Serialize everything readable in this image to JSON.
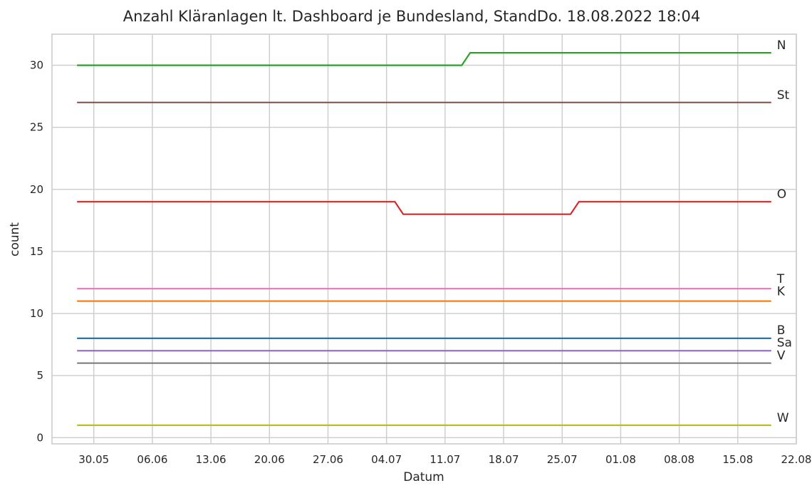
{
  "chart_data": {
    "type": "line",
    "title": "Anzahl Kläranlagen lt. Dashboard je Bundesland, StandDo. 18.08.2022 18:04",
    "xlabel": "Datum",
    "ylabel": "count",
    "x_ticks": [
      "30.05",
      "06.06",
      "13.06",
      "20.06",
      "27.06",
      "04.07",
      "11.07",
      "18.07",
      "25.07",
      "01.08",
      "08.08",
      "15.08",
      "22.08"
    ],
    "y_ticks": [
      0,
      5,
      10,
      15,
      20,
      25,
      30
    ],
    "xlim": [
      "2022-05-25",
      "2022-08-22"
    ],
    "ylim": [
      -0.5,
      32.5
    ],
    "grid": true,
    "legend": "none",
    "series": [
      {
        "name": "N",
        "color": "#2ca02c",
        "points": [
          [
            "2022-05-28",
            30
          ],
          [
            "2022-07-13",
            30
          ],
          [
            "2022-07-14",
            31
          ],
          [
            "2022-08-19",
            31
          ]
        ]
      },
      {
        "name": "St",
        "color": "#8c564b",
        "points": [
          [
            "2022-05-28",
            27
          ],
          [
            "2022-08-19",
            27
          ]
        ]
      },
      {
        "name": "O",
        "color": "#d62728",
        "points": [
          [
            "2022-05-28",
            19
          ],
          [
            "2022-07-05",
            19
          ],
          [
            "2022-07-06",
            18
          ],
          [
            "2022-07-26",
            18
          ],
          [
            "2022-07-27",
            19
          ],
          [
            "2022-08-19",
            19
          ]
        ]
      },
      {
        "name": "T",
        "color": "#e377c2",
        "points": [
          [
            "2022-05-28",
            12
          ],
          [
            "2022-08-19",
            12
          ]
        ]
      },
      {
        "name": "K",
        "color": "#ff7f0e",
        "points": [
          [
            "2022-05-28",
            11
          ],
          [
            "2022-08-19",
            11
          ]
        ]
      },
      {
        "name": "B",
        "color": "#1f77b4",
        "points": [
          [
            "2022-05-28",
            8
          ],
          [
            "2022-08-19",
            8
          ]
        ]
      },
      {
        "name": "Sa",
        "color": "#9467bd",
        "points": [
          [
            "2022-05-28",
            7
          ],
          [
            "2022-08-19",
            7
          ]
        ]
      },
      {
        "name": "V",
        "color": "#7f7f7f",
        "points": [
          [
            "2022-05-28",
            6
          ],
          [
            "2022-08-19",
            6
          ]
        ]
      },
      {
        "name": "W",
        "color": "#bcbd22",
        "points": [
          [
            "2022-05-28",
            1
          ],
          [
            "2022-08-19",
            1
          ]
        ]
      }
    ]
  }
}
